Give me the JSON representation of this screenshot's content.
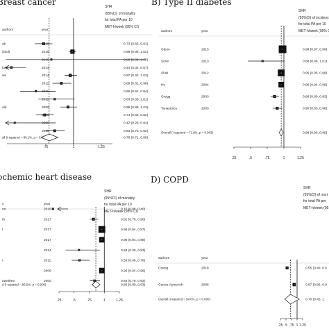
{
  "chart_data": [
    {
      "type": "forest",
      "panel_id": "A",
      "title": "Breast cancer",
      "col_authors": "authors",
      "col_year": "year",
      "est_header": [
        "SHR",
        "(95%CI) of mortality",
        "for total PA per 10",
        "MET-h/week (95% CI)"
      ],
      "xticks": [
        ".75",
        "1",
        "1.25"
      ],
      "xlim": [
        0.4,
        1.35
      ],
      "studies": [
        {
          "author": "ak",
          "year": "2018",
          "est": 0.73,
          "lo": 0.65,
          "hi": 0.81,
          "label": "0.73 (0.65, 0.81)"
        },
        {
          "author": "izbolt",
          "year": "2016",
          "est": 0.99,
          "lo": 0.96,
          "hi": 1.02,
          "label": "0.99 (0.96, 1.02)"
        },
        {
          "author": "",
          "year": "2015",
          "est": 0.8,
          "lo": 0.39,
          "hi": 1.65,
          "label": "0.80 (0.39, 1.65)"
        },
        {
          "author": "haw",
          "year": "2014",
          "est": 0.44,
          "lo": 0.34,
          "hi": 0.57,
          "label": "0.44 (0.34, 0.57)"
        },
        {
          "author": "ws",
          "year": "2014",
          "est": 0.97,
          "lo": 0.92,
          "hi": 1.03,
          "label": "0.97 (0.92, 1.03)"
        },
        {
          "author": "",
          "year": "2011",
          "est": 0.89,
          "lo": 0.81,
          "hi": 0.98,
          "label": "0.89 (0.81, 0.98)"
        },
        {
          "author": "",
          "year": "2011",
          "est": 0.66,
          "lo": 0.52,
          "hi": 0.84,
          "label": "0.66 (0.52, 0.84)"
        },
        {
          "author": "",
          "year": "2011",
          "est": 0.83,
          "lo": 0.68,
          "hi": 1.01,
          "label": "0.83 (0.68, 1.01)"
        },
        {
          "author": "old",
          "year": "2009",
          "est": 0.95,
          "lo": 0.88,
          "hi": 1.03,
          "label": "0.95 (0.88, 1.03)"
        },
        {
          "author": "",
          "year": "2008",
          "est": 0.74,
          "lo": 0.66,
          "hi": 0.82,
          "label": "0.74 (0.66, 0.82)"
        },
        {
          "author": "",
          "year": "2008",
          "est": 0.47,
          "lo": 0.26,
          "hi": 0.84,
          "label": "0.47 (0.26, 0.84)"
        },
        {
          "author": "",
          "year": "2005",
          "est": 0.83,
          "lo": 0.75,
          "hi": 0.92,
          "label": "0.83 (0.75, 0.92)"
        }
      ],
      "overall": {
        "label_text": "all  (I-squared = 80.1%, p = 0.000)",
        "est": 0.78,
        "lo": 0.71,
        "hi": 0.86,
        "label": "0.78 (0.71, 0.86)"
      },
      "reference_line": 1,
      "dashed_line": 0.78
    },
    {
      "type": "forest",
      "panel_id": "B",
      "title": "B) Type II diabetes",
      "col_authors": "authors",
      "col_year": "year",
      "est_header": [
        "SHR",
        "(95%CI) of incidence",
        "for total PA per 10",
        "MET-h/week (95% CI)"
      ],
      "xticks": [
        ".25",
        ".5",
        ".75",
        "1",
        "1.25"
      ],
      "xlim": [
        0.25,
        1.25
      ],
      "studies": [
        {
          "author": "Glenn",
          "year": "2015",
          "est": 0.98,
          "lo": 0.97,
          "hi": 0.99,
          "label": "0.98 (0.97, 0.99)"
        },
        {
          "author": "Sone",
          "year": "2013",
          "est": 0.68,
          "lo": 0.46,
          "hi": 1.01,
          "label": "0.68 (0.46, 1.01)"
        },
        {
          "author": "Sluik",
          "year": "2012",
          "est": 0.96,
          "lo": 0.95,
          "hi": 0.98,
          "label": "0.96 (0.95, 0.98)"
        },
        {
          "author": "Hu",
          "year": "2004",
          "est": 0.96,
          "lo": 0.94,
          "hi": 0.98,
          "label": "0.96 (0.94, 0.98)"
        },
        {
          "author": "Gregg",
          "year": "2003",
          "est": 0.86,
          "lo": 0.8,
          "hi": 0.93,
          "label": "0.86 (0.80, 0.93)"
        },
        {
          "author": "Tanasescu",
          "year": "2003",
          "est": 0.9,
          "lo": 0.83,
          "hi": 0.98,
          "label": "0.90 (0.83, 0.98)"
        }
      ],
      "overall": {
        "label_text": "Overall  (I-squared = 71.8%, p = 0.003)",
        "est": 0.96,
        "lo": 0.93,
        "hi": 0.99,
        "label": "0.96 (0.93, 0.99)"
      },
      "reference_line": 1,
      "dashed_line": 0.96
    },
    {
      "type": "forest",
      "panel_id": "C",
      "title": "ochemic heart disease",
      "col_authors": "s",
      "col_year": "year",
      "est_header": [
        "SHR",
        "(95%CI) of mortality",
        "for total PA per 10",
        "MET-h/week (95% CI)"
      ],
      "xticks": [
        ".25",
        ".5",
        ".75",
        "1",
        "1.25"
      ],
      "xlim": [
        0.25,
        1.25
      ],
      "studies": [
        {
          "author": "en",
          "year": "2018",
          "est": 0.15,
          "lo": 0.06,
          "hi": 0.4,
          "label": "0.15 (0.06, 0.40)"
        },
        {
          "author": "th",
          "year": "2017",
          "est": 0.82,
          "lo": 0.76,
          "hi": 0.9,
          "label": "0.82 (0.76, 0.90)"
        },
        {
          "author": "t",
          "year": "2017",
          "est": 0.96,
          "lo": 0.94,
          "hi": 0.97,
          "label": "0.96 (0.94, 0.97)"
        },
        {
          "author": "",
          "year": "2017",
          "est": 0.96,
          "lo": 0.94,
          "hi": 0.98,
          "label": "0.96 (0.94, 0.98)"
        },
        {
          "author": "",
          "year": "2014",
          "est": 0.58,
          "lo": 0.36,
          "hi": 0.93,
          "label": "0.58 (0.36, 0.93)"
        },
        {
          "author": "r",
          "year": "2011",
          "est": 0.59,
          "lo": 0.46,
          "hi": 0.76,
          "label": "0.59 (0.46, 0.76)"
        },
        {
          "author": "",
          "year": "2006",
          "est": 0.96,
          "lo": 0.94,
          "hi": 0.98,
          "label": "0.96 (0.94, 0.98)"
        },
        {
          "author": "nwethee",
          "year": "2000",
          "est": 0.84,
          "lo": 0.76,
          "hi": 0.93,
          "label": "0.84 (0.76, 0.93)"
        }
      ],
      "overall": {
        "label_text": "d  (I-squared = 86.5%, p = 0.000)",
        "est": 0.86,
        "lo": 0.8,
        "hi": 0.93,
        "label": "0.86 (0.80, 0.93)"
      },
      "reference_line": 1,
      "dashed_line": 0.86
    },
    {
      "type": "forest",
      "panel_id": "D",
      "title": "D) COPD",
      "col_authors": "authors",
      "col_year": "year",
      "est_header": [
        "SHR",
        "(95%CI) of mort",
        "for total PA per",
        "MET-h/week (95"
      ],
      "xticks": [
        ".25",
        ".5",
        ".75",
        "1",
        "1.25"
      ],
      "xlim": [
        0.25,
        1.25
      ],
      "studies": [
        {
          "author": "Cheng",
          "year": "2018",
          "est": 0.55,
          "lo": 0.49,
          "hi": 0.62,
          "label": "0.55 (0.49, 0.6"
        },
        {
          "author": "Garcia-Aymerich",
          "year": "2006",
          "est": 0.87,
          "lo": 0.82,
          "hi": 0.92,
          "label": "0.87 (0.82, 0.9"
        }
      ],
      "overall": {
        "label_text": "Overall  (I-squared = 94.0%, p = 0.000)",
        "est": 0.7,
        "lo": 0.45,
        "hi": 1.1,
        "label": "0.70 (0.45, 1."
      },
      "reference_line": 1,
      "dashed_line": 0.7
    }
  ]
}
